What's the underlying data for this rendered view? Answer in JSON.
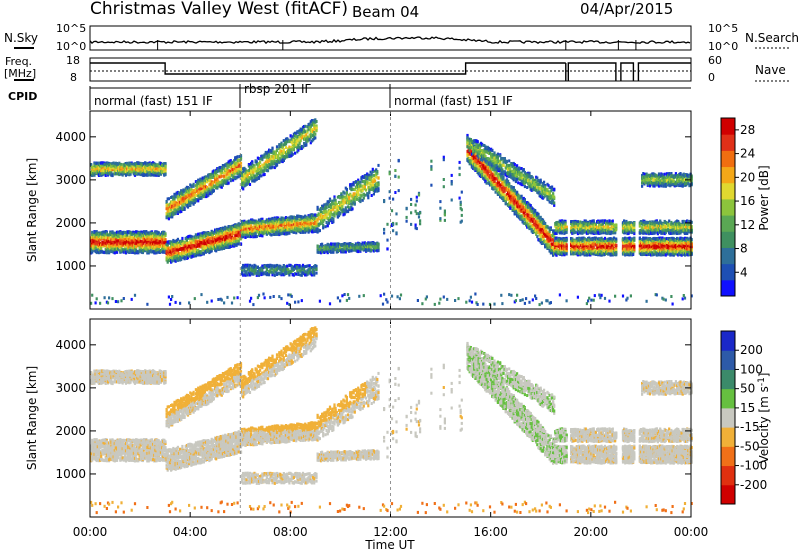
{
  "header": {
    "title": "Christmas Valley West (fitACF)",
    "beam": "Beam 04",
    "date": "04/Apr/2015"
  },
  "nsky_panel": {
    "left_label": "N.Sky",
    "right_label": "N.Search",
    "left_ticks": [
      "10^5",
      "10^0"
    ],
    "right_ticks": [
      "10^5",
      "10^0"
    ]
  },
  "freq_panel": {
    "left_label_1": "Freq.",
    "left_label_2": "[MHz]",
    "right_label": "Nave",
    "left_ticks": [
      18,
      8
    ],
    "right_ticks": [
      60,
      0
    ]
  },
  "cpid": {
    "label": "CPID",
    "segments": [
      {
        "start": 0,
        "end": 6,
        "text": "normal (fast) 151 IF"
      },
      {
        "start": 6,
        "end": 12,
        "text": "rbsp 201 IF"
      },
      {
        "start": 12,
        "end": 24,
        "text": "normal (fast) 151 IF"
      }
    ]
  },
  "chart_data": [
    {
      "type": "heatmap",
      "name": "power",
      "ylabel": "Slant Range [km]",
      "ylim": [
        0,
        4600
      ],
      "yticks": [
        1000,
        2000,
        3000,
        4000
      ],
      "xlim": [
        0,
        24
      ],
      "colorbar": {
        "label": "Power [dB]",
        "ticks": [
          4,
          8,
          12,
          16,
          20,
          24,
          28
        ],
        "range": [
          0,
          30
        ],
        "colors": [
          "#1010ff",
          "#1e4fb4",
          "#2e6f9a",
          "#3f9060",
          "#5aa854",
          "#8cc43c",
          "#e0d830",
          "#f4a818",
          "#f06e10",
          "#e03018",
          "#d00000"
        ]
      }
    },
    {
      "type": "heatmap",
      "name": "velocity",
      "ylabel": "Slant Range [km]",
      "ylim": [
        0,
        4600
      ],
      "yticks": [
        1000,
        2000,
        3000,
        4000
      ],
      "xlim": [
        0,
        24
      ],
      "colorbar": {
        "label": "Velocity [m s-1]",
        "ticks": [
          "200",
          "100",
          "50",
          "15",
          "-15",
          "-50",
          "-100",
          "-200"
        ],
        "colors": [
          "#1a28c8",
          "#2d5aa8",
          "#3b8a6a",
          "#66c040",
          "#c8c8c0",
          "#f0b038",
          "#f07018",
          "#e03010",
          "#d00000"
        ]
      }
    }
  ],
  "xaxis": {
    "label": "Time UT",
    "ticks": [
      "00:00",
      "04:00",
      "08:00",
      "12:00",
      "16:00",
      "20:00",
      "00:00"
    ],
    "tick_hours": [
      0,
      4,
      8,
      12,
      16,
      20,
      24
    ]
  }
}
